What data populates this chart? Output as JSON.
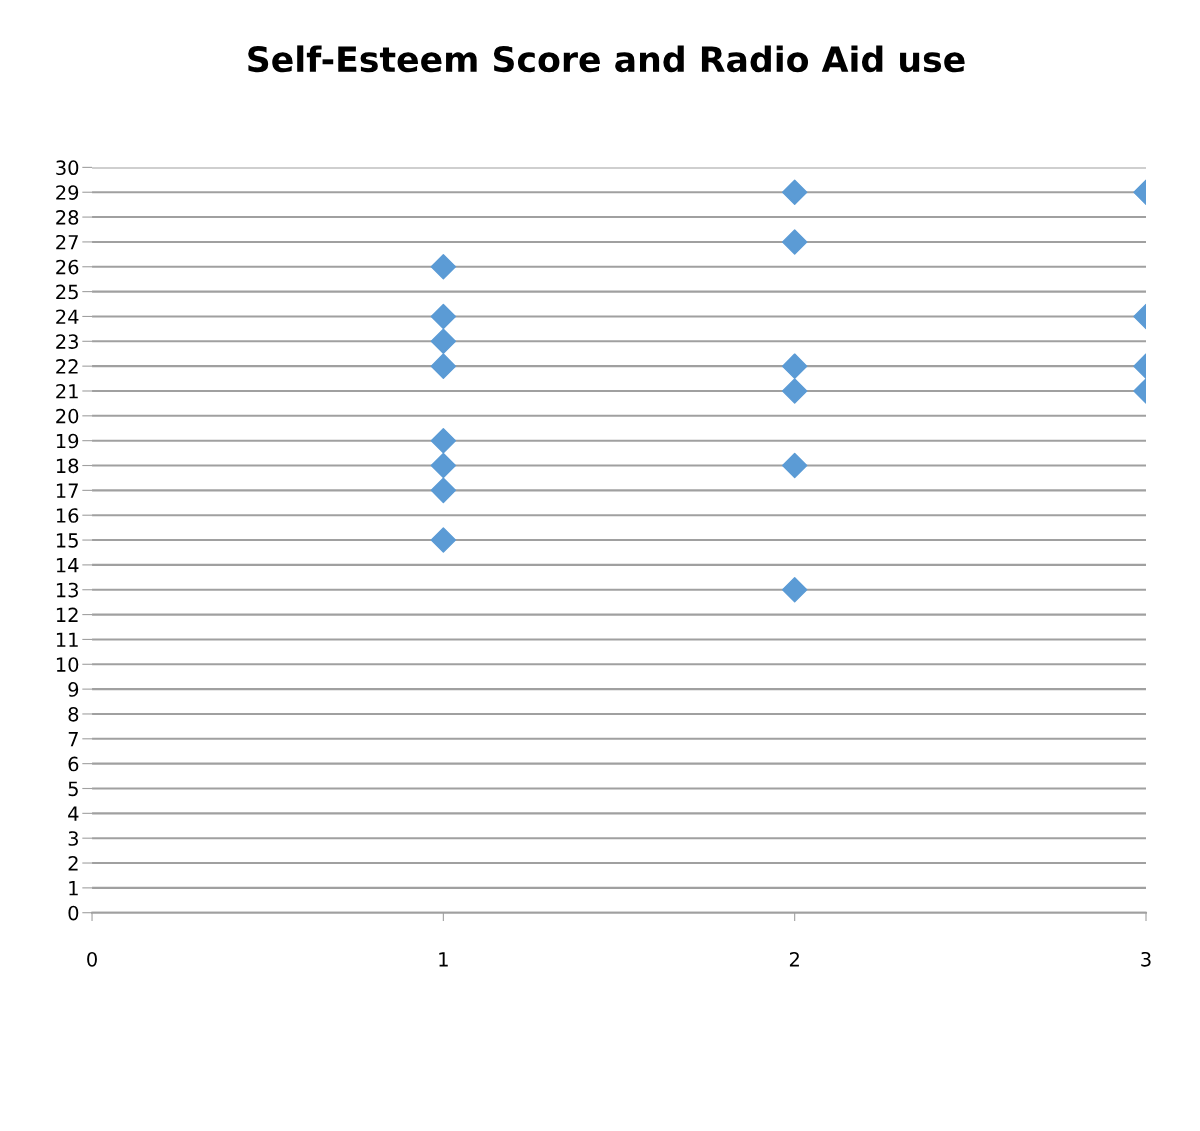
{
  "chart_data": {
    "type": "scatter",
    "title": "Self-Esteem Score and Radio Aid use",
    "series": [
      {
        "color": "#5b9bd5",
        "x": [
          1,
          1,
          1,
          1,
          1,
          1,
          1,
          1,
          2,
          2,
          2,
          2,
          2,
          2,
          3,
          3,
          3,
          3
        ],
        "values": [
          26,
          24,
          23,
          22,
          19,
          18,
          17,
          15,
          29,
          27,
          22,
          21,
          18,
          13,
          29,
          24,
          22,
          21
        ]
      }
    ],
    "marker": "diamond",
    "xlim": [
      0,
      3
    ],
    "xticks": [
      0,
      1,
      2,
      3
    ],
    "ylim": [
      0,
      30
    ],
    "yticks": [
      0,
      1,
      2,
      3,
      4,
      5,
      6,
      7,
      8,
      9,
      10,
      11,
      12,
      13,
      14,
      15,
      16,
      17,
      18,
      19,
      20,
      21,
      22,
      23,
      24,
      25,
      26,
      27,
      28,
      29,
      30
    ],
    "grid": "y",
    "legend": false
  }
}
